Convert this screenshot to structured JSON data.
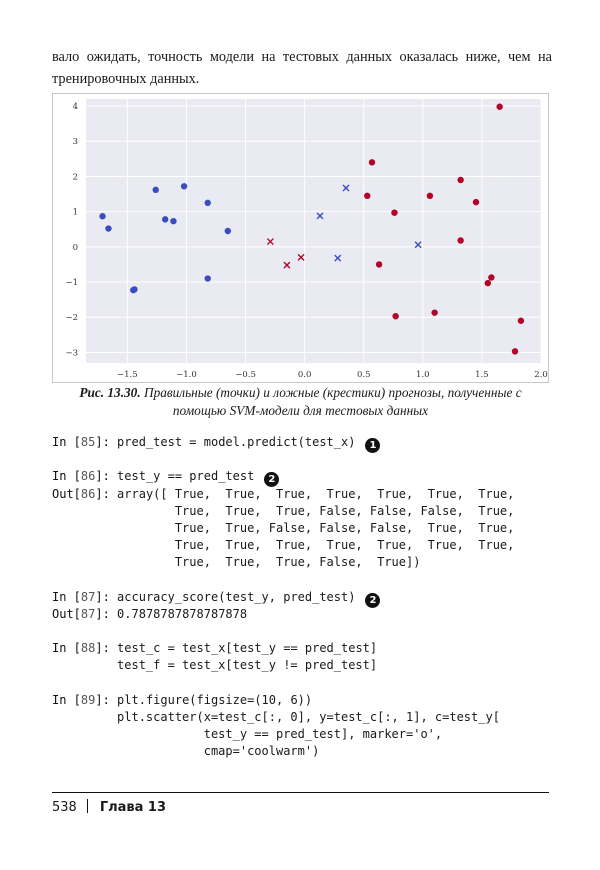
{
  "intro": {
    "text": "вало ожидать, точность модели на тестовых данных оказалась ниже, чем на тренировочных данных."
  },
  "figure": {
    "caption_label": "Рис. 13.30.",
    "caption_text": "Правильные (точки) и ложные (крестики) прогнозы, полученные с помощью SVM-модели для тестовых данных"
  },
  "chart_data": {
    "type": "scatter",
    "xlim": [
      -1.85,
      2.0
    ],
    "ylim": [
      -3.3,
      4.2
    ],
    "x_ticks": [
      "−1.5",
      "−1.0",
      "−0.5",
      "0.0",
      "0.5",
      "1.0",
      "1.5",
      "2.0"
    ],
    "x_tick_values": [
      -1.5,
      -1.0,
      -0.5,
      0.0,
      0.5,
      1.0,
      1.5,
      2.0
    ],
    "y_ticks": [
      "4",
      "3",
      "2",
      "1",
      "0",
      "−1",
      "−2",
      "−3"
    ],
    "y_tick_values": [
      4,
      3,
      2,
      1,
      0,
      -1,
      -2,
      -3
    ],
    "grid": true,
    "colors": {
      "class0": "#3b4cc0",
      "class1": "#b40426",
      "background": "#eaeaf2",
      "grid": "#ffffff"
    },
    "series": [
      {
        "marker": "circle",
        "color": "#3b4cc0",
        "points": [
          [
            -1.71,
            0.87
          ],
          [
            -1.66,
            0.52
          ],
          [
            -1.45,
            -1.23
          ],
          [
            -1.44,
            -1.21
          ],
          [
            -1.26,
            1.62
          ],
          [
            -1.18,
            0.78
          ],
          [
            -1.11,
            0.73
          ],
          [
            -1.02,
            1.72
          ],
          [
            -0.82,
            1.25
          ],
          [
            -0.82,
            -0.9
          ],
          [
            -0.65,
            0.45
          ]
        ]
      },
      {
        "marker": "circle",
        "color": "#b40426",
        "points": [
          [
            0.53,
            1.45
          ],
          [
            0.57,
            2.4
          ],
          [
            0.63,
            -0.5
          ],
          [
            0.76,
            0.97
          ],
          [
            0.77,
            -1.97
          ],
          [
            1.06,
            1.45
          ],
          [
            1.1,
            -1.87
          ],
          [
            1.32,
            1.9
          ],
          [
            1.32,
            0.18
          ],
          [
            1.45,
            1.27
          ],
          [
            1.55,
            -1.03
          ],
          [
            1.58,
            -0.87
          ],
          [
            1.65,
            3.98
          ],
          [
            1.78,
            -2.97
          ],
          [
            1.83,
            -2.1
          ]
        ]
      },
      {
        "marker": "x",
        "color": "#3b4cc0",
        "points": [
          [
            0.13,
            0.88
          ],
          [
            0.35,
            1.67
          ],
          [
            0.28,
            -0.32
          ],
          [
            0.96,
            0.06
          ]
        ]
      },
      {
        "marker": "x",
        "color": "#b40426",
        "points": [
          [
            -0.29,
            0.15
          ],
          [
            -0.15,
            -0.52
          ],
          [
            -0.03,
            -0.3
          ]
        ]
      }
    ]
  },
  "code": {
    "cells": [
      {
        "lines": [
          {
            "prompt": "In [",
            "num": "85",
            "close": "]: ",
            "code": "pred_test = model.predict(test_x)",
            "marker": "❶"
          }
        ]
      },
      {
        "lines": [
          {
            "prompt": "In [",
            "num": "86",
            "close": "]: ",
            "code": "test_y == pred_test",
            "marker": "❷"
          },
          {
            "prompt": "Out[",
            "num": "86",
            "close": "]: ",
            "code": "array([ True,  True,  True,  True,  True,  True,  True,"
          },
          {
            "prompt": "",
            "num": "",
            "close": "",
            "code": "                 True,  True,  True, False, False, False,  True,"
          },
          {
            "prompt": "",
            "num": "",
            "close": "",
            "code": "                 True,  True, False, False, False,  True,  True,"
          },
          {
            "prompt": "",
            "num": "",
            "close": "",
            "code": "                 True,  True,  True,  True,  True,  True,  True,"
          },
          {
            "prompt": "",
            "num": "",
            "close": "",
            "code": "                 True,  True,  True, False,  True])"
          }
        ]
      },
      {
        "lines": [
          {
            "prompt": "In [",
            "num": "87",
            "close": "]: ",
            "code": "accuracy_score(test_y, pred_test)",
            "marker": "❷"
          },
          {
            "prompt": "Out[",
            "num": "87",
            "close": "]: ",
            "code": "0.7878787878787878"
          }
        ]
      },
      {
        "lines": [
          {
            "prompt": "In [",
            "num": "88",
            "close": "]: ",
            "code": "test_c = test_x[test_y == pred_test]"
          },
          {
            "prompt": "",
            "num": "",
            "close": "",
            "code": "         test_f = test_x[test_y != pred_test]"
          }
        ]
      },
      {
        "lines": [
          {
            "prompt": "In [",
            "num": "89",
            "close": "]: ",
            "code": "plt.figure(figsize=(10, 6))"
          },
          {
            "prompt": "",
            "num": "",
            "close": "",
            "code": "         plt.scatter(x=test_c[:, 0], y=test_c[:, 1], c=test_y["
          },
          {
            "prompt": "",
            "num": "",
            "close": "",
            "code": "                     test_y == pred_test], marker='o',"
          },
          {
            "prompt": "",
            "num": "",
            "close": "",
            "code": "                     cmap='coolwarm')"
          }
        ]
      }
    ]
  },
  "footer": {
    "page": "538",
    "chapter": "Глава 13"
  }
}
